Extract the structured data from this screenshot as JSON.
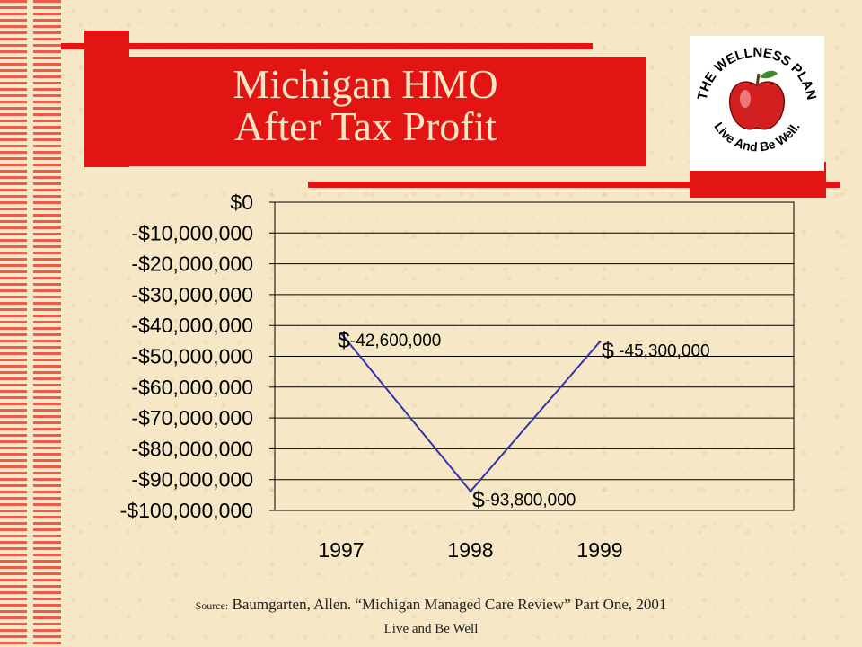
{
  "slide": {
    "title_line1": "Michigan HMO",
    "title_line2": "After Tax Profit",
    "source_prefix": "Source:",
    "source_text": "Baumgarten, Allen. “Michigan Managed Care Review” Part One, 2001",
    "footer": "Live and Be Well"
  },
  "logo": {
    "top_text": "THE WELLNESS PLAN",
    "bottom_text": "Live And Be Well.",
    "icon": "apple-icon"
  },
  "chart_data": {
    "type": "line",
    "categories": [
      "1997",
      "1998",
      "1999"
    ],
    "series": [
      {
        "values": [
          -42600000,
          -93800000,
          -45300000
        ]
      }
    ],
    "data_labels": [
      {
        "currency": "$",
        "amount": "-42,600,000"
      },
      {
        "currency": "$",
        "amount": "-93,800,000"
      },
      {
        "currency": "$",
        "amount": " -45,300,000"
      }
    ],
    "y_ticks": [
      0,
      -10000000,
      -20000000,
      -30000000,
      -40000000,
      -50000000,
      -60000000,
      -70000000,
      -80000000,
      -90000000,
      -100000000
    ],
    "y_tick_labels": [
      "$0",
      "-$10,000,000",
      "-$20,000,000",
      "-$30,000,000",
      "-$40,000,000",
      "-$50,000,000",
      "-$60,000,000",
      "-$70,000,000",
      "-$80,000,000",
      "-$90,000,000",
      "-$100,000,000"
    ],
    "ylim": [
      -100000000,
      0
    ],
    "grid": true,
    "colors": {
      "line": "#3333aa",
      "grid": "#000000"
    }
  }
}
